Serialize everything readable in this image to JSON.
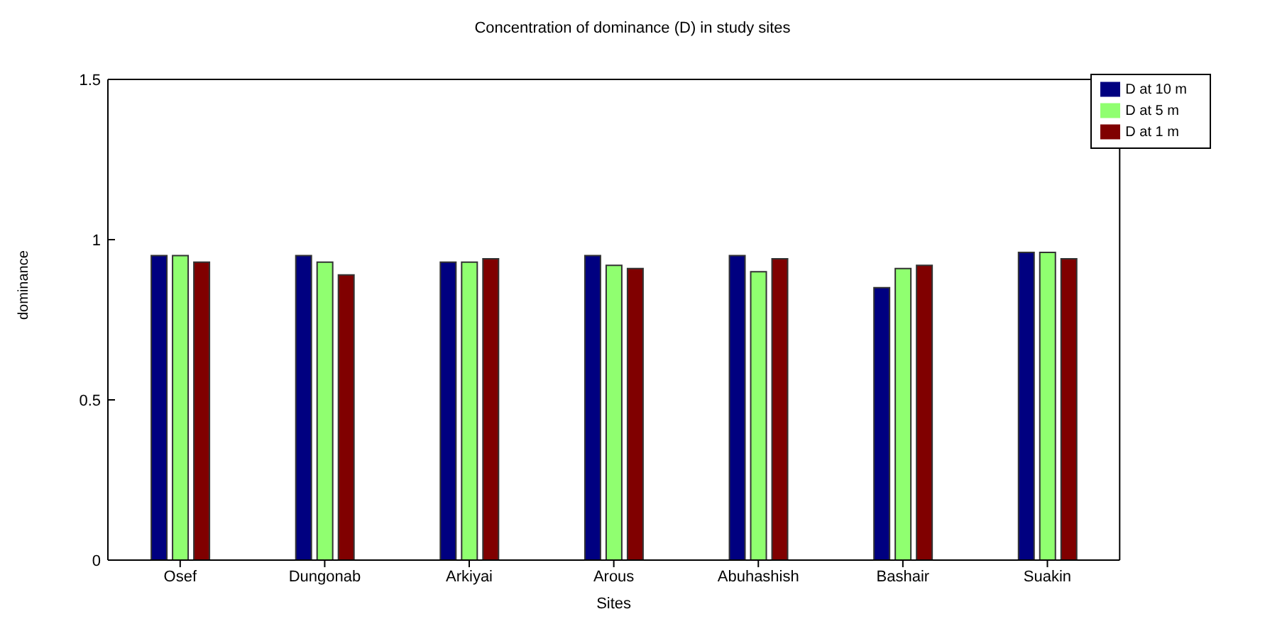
{
  "chart_data": {
    "type": "bar",
    "title": "Concentration of dominance (D) in study sites",
    "xlabel": "Sites",
    "ylabel": "dominance",
    "categories": [
      "Osef",
      "Dungonab",
      "Arkiyai",
      "Arous",
      "Abuhashish",
      "Bashair",
      "Suakin"
    ],
    "series": [
      {
        "name": "D at 10 m",
        "color": "#000080",
        "values": [
          0.95,
          0.95,
          0.93,
          0.95,
          0.95,
          0.85,
          0.96
        ]
      },
      {
        "name": "D at 5 m",
        "color": "#90ff70",
        "values": [
          0.95,
          0.93,
          0.93,
          0.92,
          0.9,
          0.91,
          0.96
        ]
      },
      {
        "name": "D at 1 m",
        "color": "#800000",
        "values": [
          0.93,
          0.89,
          0.94,
          0.91,
          0.94,
          0.92,
          0.94
        ]
      }
    ],
    "ylim": [
      0,
      1.5
    ],
    "yticks": [
      0,
      {
        "value": 0.5,
        "label": "0.5"
      },
      1,
      1.5
    ],
    "grid": false,
    "legend": "top right"
  }
}
